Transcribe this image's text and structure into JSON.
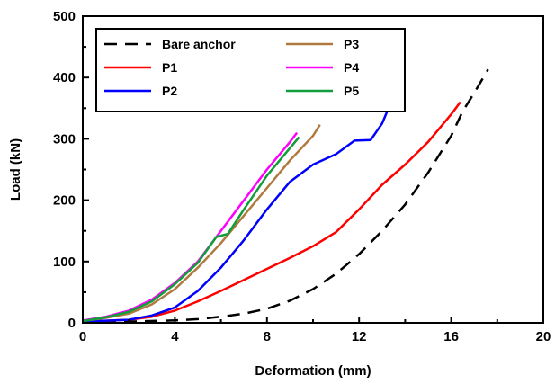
{
  "chart_data": {
    "type": "line",
    "title": "",
    "xlabel": "Deformation (mm)",
    "ylabel": "Load (kN)",
    "xlim": [
      0,
      20
    ],
    "ylim": [
      0,
      500
    ],
    "xticks": [
      0,
      4,
      8,
      12,
      16,
      20
    ],
    "yticks": [
      0,
      100,
      200,
      300,
      400,
      500
    ],
    "grid": false,
    "legend": "top-left",
    "series": [
      {
        "name": "Bare anchor",
        "color": "#000000",
        "dash": "dashed",
        "points": [
          [
            0,
            1
          ],
          [
            2,
            2
          ],
          [
            4,
            4
          ],
          [
            5,
            6
          ],
          [
            6,
            10
          ],
          [
            7,
            15
          ],
          [
            8,
            23
          ],
          [
            9,
            36
          ],
          [
            10,
            55
          ],
          [
            11,
            80
          ],
          [
            12,
            112
          ],
          [
            13,
            150
          ],
          [
            14,
            193
          ],
          [
            15,
            245
          ],
          [
            16,
            305
          ],
          [
            16.5,
            345
          ],
          [
            17,
            375
          ],
          [
            17.6,
            413
          ]
        ]
      },
      {
        "name": "P1",
        "color": "#ff0000",
        "dash": "solid",
        "points": [
          [
            0,
            2
          ],
          [
            2,
            5
          ],
          [
            3,
            10
          ],
          [
            4,
            20
          ],
          [
            5,
            35
          ],
          [
            6,
            52
          ],
          [
            7,
            70
          ],
          [
            8,
            88
          ],
          [
            9,
            106
          ],
          [
            10,
            125
          ],
          [
            11,
            148
          ],
          [
            12,
            185
          ],
          [
            13,
            225
          ],
          [
            14,
            258
          ],
          [
            15,
            295
          ],
          [
            16,
            340
          ],
          [
            16.4,
            360
          ]
        ]
      },
      {
        "name": "P2",
        "color": "#0000ff",
        "dash": "solid",
        "points": [
          [
            0,
            2
          ],
          [
            2,
            5
          ],
          [
            3,
            12
          ],
          [
            4,
            25
          ],
          [
            5,
            52
          ],
          [
            6,
            90
          ],
          [
            7,
            135
          ],
          [
            8,
            185
          ],
          [
            9,
            230
          ],
          [
            10,
            258
          ],
          [
            11,
            275
          ],
          [
            11.8,
            297
          ],
          [
            12.5,
            298
          ],
          [
            13,
            325
          ],
          [
            13.5,
            370
          ]
        ]
      },
      {
        "name": "P3",
        "color": "#b07a3f",
        "dash": "solid",
        "points": [
          [
            0,
            3
          ],
          [
            1,
            8
          ],
          [
            2,
            15
          ],
          [
            3,
            30
          ],
          [
            4,
            55
          ],
          [
            5,
            90
          ],
          [
            6,
            130
          ],
          [
            7,
            175
          ],
          [
            8,
            220
          ],
          [
            9,
            265
          ],
          [
            10,
            305
          ],
          [
            10.3,
            323
          ]
        ]
      },
      {
        "name": "P4",
        "color": "#ff00ff",
        "dash": "solid",
        "points": [
          [
            0,
            4
          ],
          [
            1,
            10
          ],
          [
            2,
            20
          ],
          [
            3,
            38
          ],
          [
            4,
            65
          ],
          [
            5,
            100
          ],
          [
            6,
            150
          ],
          [
            7,
            200
          ],
          [
            8,
            250
          ],
          [
            9,
            295
          ],
          [
            9.3,
            310
          ]
        ]
      },
      {
        "name": "P5",
        "color": "#109e3a",
        "dash": "solid",
        "points": [
          [
            0,
            3
          ],
          [
            1,
            9
          ],
          [
            2,
            18
          ],
          [
            3,
            35
          ],
          [
            4,
            63
          ],
          [
            5,
            98
          ],
          [
            5.8,
            140
          ],
          [
            6.3,
            145
          ],
          [
            7,
            185
          ],
          [
            8,
            240
          ],
          [
            9,
            285
          ],
          [
            9.4,
            303
          ]
        ]
      }
    ]
  }
}
